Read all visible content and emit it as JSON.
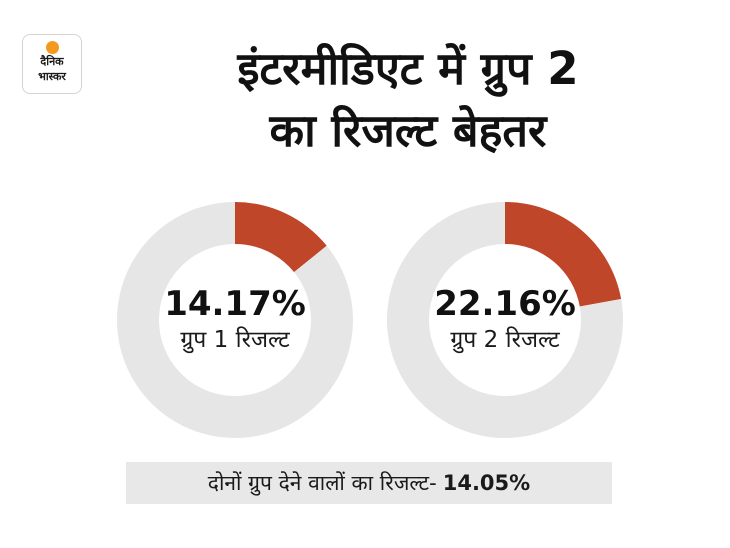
{
  "logo": {
    "line1": "दैनिक",
    "line2": "भास्कर",
    "sun_color": "#f39a1e"
  },
  "headline": {
    "line1": "इंटरमीडिएट में ग्रुप 2",
    "line2": "का रिजल्ट बेहतर"
  },
  "colors": {
    "highlight": "#c0462a",
    "track": "#e6e6e6",
    "footer_bg": "#e8e8e8"
  },
  "chart_data": [
    {
      "type": "pie",
      "donut": true,
      "center_value": "14.17%",
      "center_label": "ग्रुप 1 रिजल्ट",
      "slices": [
        {
          "value": 14.17,
          "color": "#c0462a"
        },
        {
          "value": 85.83,
          "color": "#e6e6e6"
        }
      ]
    },
    {
      "type": "pie",
      "donut": true,
      "center_value": "22.16%",
      "center_label": "ग्रुप 2 रिजल्ट",
      "slices": [
        {
          "value": 22.16,
          "color": "#c0462a"
        },
        {
          "value": 77.84,
          "color": "#e6e6e6"
        }
      ]
    }
  ],
  "footer": {
    "label": "दोनों ग्रुप देने वालों का रिजल्ट-",
    "value": "14.05%"
  }
}
